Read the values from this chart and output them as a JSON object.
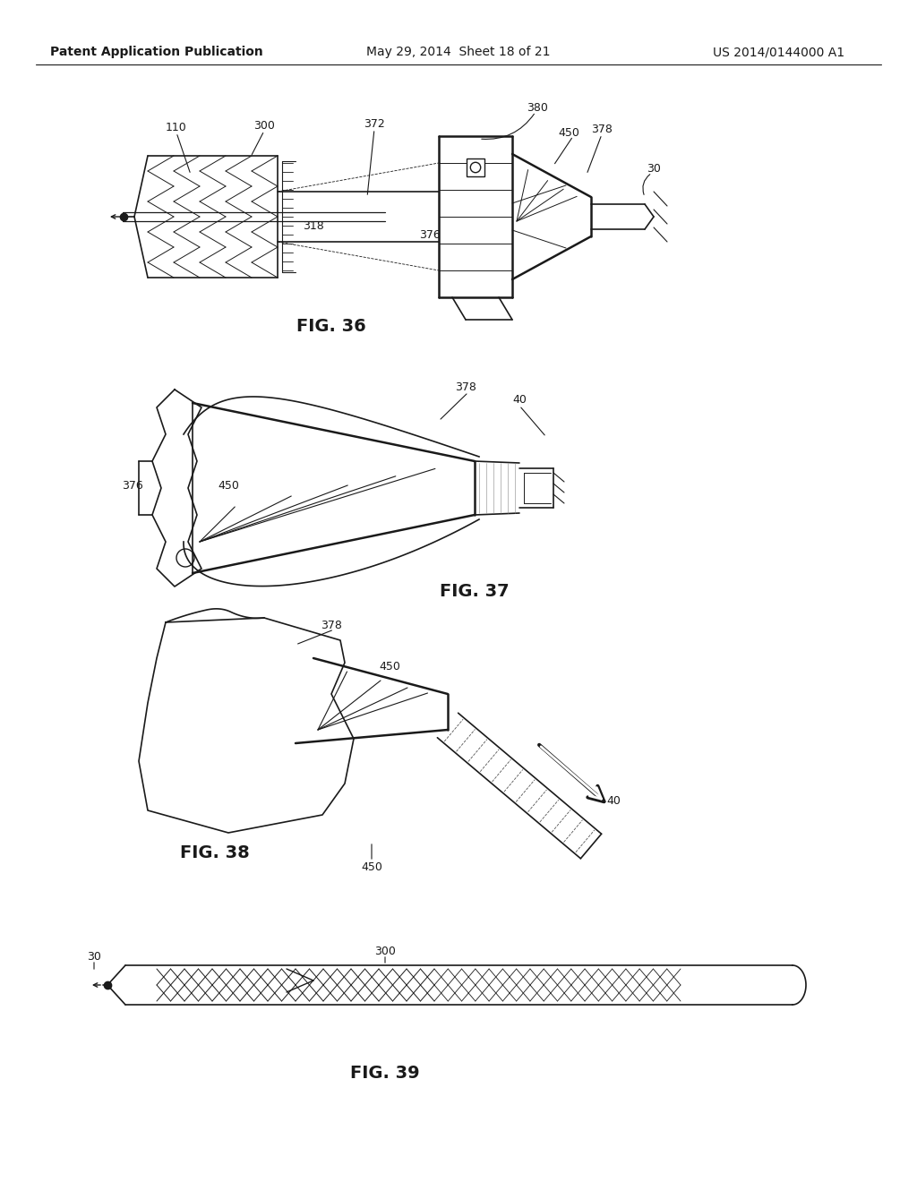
{
  "page_title_left": "Patent Application Publication",
  "page_title_mid": "May 29, 2014  Sheet 18 of 21",
  "page_title_right": "US 2014/0144000 A1",
  "fig36_label": "FIG. 36",
  "fig37_label": "FIG. 37",
  "fig38_label": "FIG. 38",
  "fig39_label": "FIG. 39",
  "background_color": "#ffffff",
  "line_color": "#1a1a1a",
  "font_size_header": 10,
  "font_size_label": 9,
  "font_size_fig": 14
}
